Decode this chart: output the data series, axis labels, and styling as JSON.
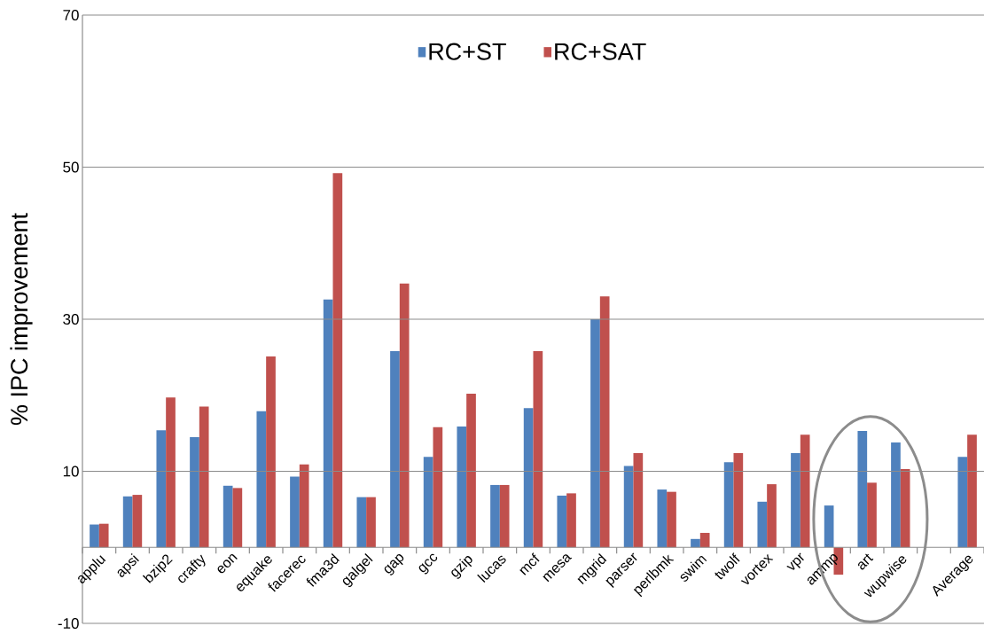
{
  "chart_data": {
    "type": "bar",
    "ylabel": "% IPC improvement",
    "categories": [
      "applu",
      "apsi",
      "bzip2",
      "crafty",
      "eon",
      "equake",
      "facerec",
      "fma3d",
      "galgel",
      "gap",
      "gcc",
      "gzip",
      "lucas",
      "mcf",
      "mesa",
      "mgrid",
      "parser",
      "perlbmk",
      "swim",
      "twolf",
      "vortex",
      "vpr",
      "ammp",
      "art",
      "wupwise",
      null,
      "Average"
    ],
    "series": [
      {
        "name": "RC+ST",
        "color": "#4f81bd",
        "values": [
          3.0,
          6.7,
          15.4,
          14.5,
          8.1,
          17.9,
          9.3,
          32.6,
          6.6,
          25.8,
          11.9,
          15.9,
          8.2,
          18.3,
          6.8,
          30.0,
          10.7,
          7.6,
          1.1,
          11.2,
          6.0,
          12.4,
          5.5,
          15.3,
          13.8,
          null,
          11.9
        ]
      },
      {
        "name": "RC+SAT",
        "color": "#c0504d",
        "values": [
          3.1,
          6.9,
          19.7,
          18.5,
          7.8,
          25.1,
          10.9,
          49.2,
          6.6,
          34.7,
          15.8,
          20.2,
          8.2,
          25.8,
          7.1,
          33.0,
          12.4,
          7.3,
          1.9,
          12.4,
          8.3,
          14.8,
          -3.6,
          8.5,
          10.3,
          null,
          14.8
        ]
      }
    ],
    "ylim": [
      -10,
      70
    ],
    "yticks": [
      -10,
      10,
      30,
      50,
      70
    ],
    "grid": "y",
    "legend": "top"
  }
}
